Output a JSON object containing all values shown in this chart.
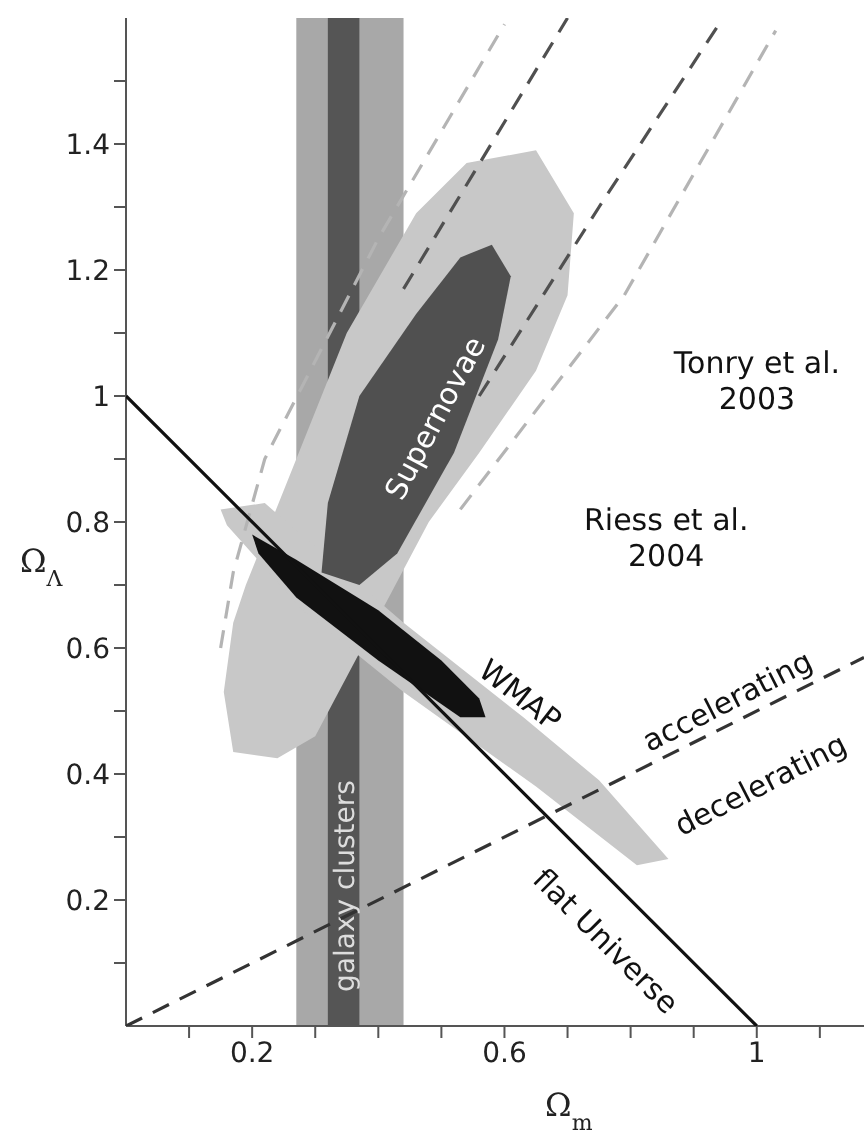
{
  "chart_data": {
    "type": "line",
    "xlabel": "Ω$_{m}$",
    "ylabel": "Ω$_{Λ}$",
    "xlim": [
      0,
      1.17
    ],
    "ylim": [
      0,
      1.6
    ],
    "xticks": [
      {
        "value": 0.1,
        "label": null
      },
      0.2,
      {
        "value": 0.3,
        "label": null
      },
      {
        "value": 0.4,
        "label": null
      },
      {
        "value": 0.5,
        "label": null
      },
      0.6,
      {
        "value": 0.7,
        "label": null
      },
      {
        "value": 0.8,
        "label": null
      },
      {
        "value": 0.9,
        "label": null
      },
      1.0,
      {
        "value": 1.1,
        "label": null
      }
    ],
    "yticks": [
      {
        "value": 0.1,
        "label": null
      },
      0.2,
      {
        "value": 0.3,
        "label": null
      },
      0.4,
      {
        "value": 0.5,
        "label": null
      },
      0.6,
      {
        "value": 0.7,
        "label": null
      },
      0.8,
      {
        "value": 0.9,
        "label": null
      },
      1.0,
      {
        "value": 1.1,
        "label": null
      },
      1.2,
      {
        "value": 1.3,
        "label": null
      },
      1.4,
      {
        "value": 1.5,
        "label": null
      }
    ],
    "grid": false,
    "bands": [
      {
        "axis": "x",
        "from": 0.27,
        "to": 0.44,
        "color": "#a8a8a8"
      },
      {
        "axis": "x",
        "from": 0.32,
        "to": 0.37,
        "color": "#555555",
        "label": "galaxy clusters"
      }
    ],
    "series": [
      {
        "type": "area",
        "color": "#c8c8c8",
        "x": [
          0.65,
          0.71,
          0.7,
          0.65,
          0.56,
          0.48,
          0.3,
          0.24,
          0.17,
          0.155,
          0.17,
          0.19,
          0.27,
          0.35,
          0.46,
          0.54,
          0.65
        ],
        "values": [
          1.39,
          1.29,
          1.16,
          1.04,
          0.91,
          0.8,
          0.46,
          0.425,
          0.435,
          0.53,
          0.64,
          0.7,
          0.9,
          1.1,
          1.29,
          1.37,
          1.39
        ]
      },
      {
        "type": "area",
        "color": "#c8c8c8",
        "x": [
          0.15,
          0.22,
          0.44,
          0.63,
          0.75,
          0.86,
          0.81,
          0.65,
          0.44,
          0.28,
          0.16,
          0.15
        ],
        "values": [
          0.82,
          0.83,
          0.64,
          0.49,
          0.39,
          0.265,
          0.255,
          0.38,
          0.53,
          0.66,
          0.795,
          0.82
        ]
      },
      {
        "type": "area",
        "color": "#505050",
        "x": [
          0.58,
          0.61,
          0.59,
          0.52,
          0.43,
          0.37,
          0.31,
          0.32,
          0.37,
          0.46,
          0.53,
          0.58
        ],
        "values": [
          1.24,
          1.19,
          1.09,
          0.91,
          0.75,
          0.7,
          0.72,
          0.83,
          1.0,
          1.13,
          1.22,
          1.24
        ]
      },
      {
        "type": "area",
        "color": "#111111",
        "x": [
          0.2,
          0.27,
          0.4,
          0.5,
          0.56,
          0.57,
          0.53,
          0.4,
          0.27,
          0.21,
          0.2
        ],
        "values": [
          0.78,
          0.74,
          0.66,
          0.58,
          0.52,
          0.49,
          0.49,
          0.58,
          0.68,
          0.75,
          0.78
        ]
      },
      {
        "type": "line",
        "color": "#505050",
        "line_style": "dashed",
        "x": [
          0.44,
          0.7
        ],
        "values": [
          1.17,
          1.6
        ]
      },
      {
        "type": "line",
        "color": "#505050",
        "line_style": "dashed",
        "x": [
          0.56,
          0.75,
          0.94
        ],
        "values": [
          1.0,
          1.3,
          1.59
        ]
      },
      {
        "type": "line",
        "color": "#b4b4b4",
        "line_style": "dashed",
        "x": [
          0.15,
          0.17,
          0.22,
          0.4,
          0.6
        ],
        "values": [
          0.6,
          0.72,
          0.9,
          1.25,
          1.59
        ]
      },
      {
        "type": "line",
        "color": "#b4b4b4",
        "line_style": "dashed",
        "x": [
          0.53,
          0.79,
          1.03
        ],
        "values": [
          0.82,
          1.16,
          1.58
        ]
      },
      {
        "color": "#111111",
        "line_style": "solid",
        "x": [
          0,
          1
        ],
        "values": [
          1,
          0
        ]
      },
      {
        "type": "line",
        "color": "#333333",
        "line_style": "dashed",
        "x": [
          0,
          1.17
        ],
        "values": [
          0,
          0.585
        ]
      }
    ],
    "annotations": [
      "Supernovae",
      "WMAP",
      "flat Universe",
      "accelerating",
      "decelerating",
      "Tonry et al.\n2003",
      "Riess et al.\n2004"
    ]
  }
}
